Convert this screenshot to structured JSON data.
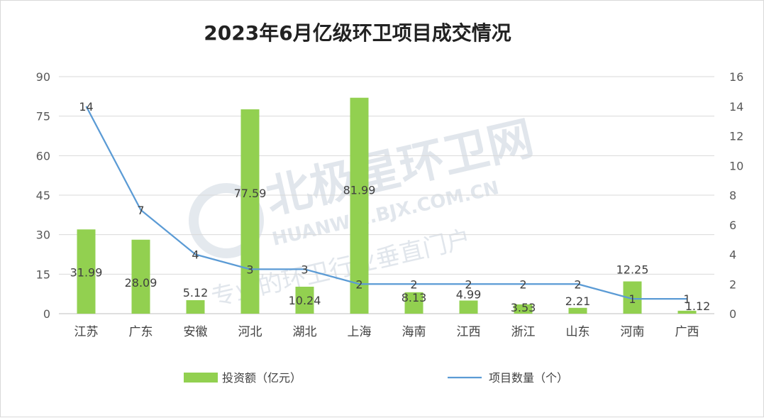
{
  "chart_data": {
    "type": "bar",
    "title": "2023年6月亿级环卫项目成交情况",
    "categories": [
      "江苏",
      "广东",
      "安徽",
      "河北",
      "湖北",
      "上海",
      "海南",
      "江西",
      "浙江",
      "山东",
      "河南",
      "广西"
    ],
    "series": [
      {
        "name": "投资额（亿元）",
        "type": "bar",
        "axis": "left",
        "color": "#92d050",
        "values": [
          31.99,
          28.09,
          5.12,
          77.59,
          10.24,
          81.99,
          8.13,
          4.99,
          3.53,
          2.21,
          12.25,
          1.12
        ],
        "labels": [
          "31.99",
          "28.09",
          "5.12",
          "77.59",
          "10.24",
          "81.99",
          "8.13",
          "4.99",
          "3.53",
          "2.21",
          "12.25",
          "1.12"
        ]
      },
      {
        "name": "项目数量（个）",
        "type": "line",
        "axis": "right",
        "color": "#5b9bd5",
        "values": [
          14,
          7,
          4,
          3,
          3,
          2,
          2,
          2,
          2,
          2,
          1,
          1
        ],
        "labels": [
          "14",
          "7",
          "4",
          "3",
          "3",
          "2",
          "2",
          "2",
          "2",
          "2",
          "1",
          "1"
        ]
      }
    ],
    "y_left": {
      "min": 0,
      "max": 90,
      "ticks": [
        "0",
        "15",
        "30",
        "45",
        "60",
        "75",
        "90"
      ]
    },
    "y_right": {
      "min": 0,
      "max": 16,
      "ticks": [
        "0",
        "2",
        "4",
        "6",
        "8",
        "10",
        "12",
        "14",
        "16"
      ]
    },
    "grid": true,
    "legend": "bottom"
  },
  "watermark": {
    "main": "北极星环卫网",
    "site": "HUANWEI.BJX.COM.CN",
    "slogan": "专业的环卫行业垂直门户"
  }
}
